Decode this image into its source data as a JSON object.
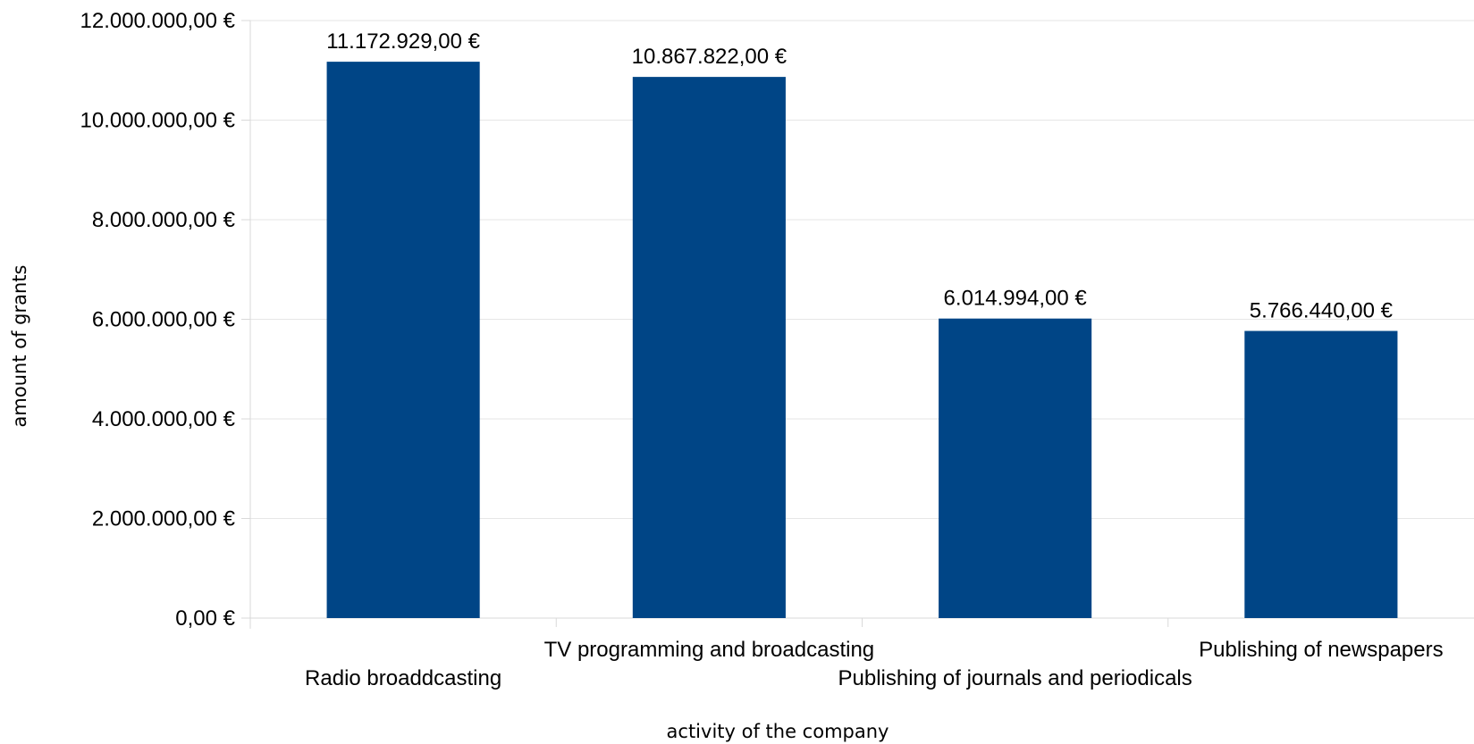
{
  "chart_data": {
    "type": "bar",
    "categories": [
      "Radio broaddcasting",
      "TV programming and broadcasting",
      "Publishing of journals and periodicals",
      "Publishing of newspapers"
    ],
    "values": [
      11172929,
      10867822,
      6014994,
      5766440
    ],
    "data_labels": [
      "11.172.929,00 €",
      "10.867.822,00 €",
      "6.014.994,00 €",
      "5.766.440,00 €"
    ],
    "y_ticks": [
      0,
      2000000,
      4000000,
      6000000,
      8000000,
      10000000,
      12000000
    ],
    "y_tick_labels": [
      "0,00 €",
      "2.000.000,00 €",
      "4.000.000,00 €",
      "6.000.000,00 €",
      "8.000.000,00 €",
      "10.000.000,00 €",
      "12.000.000,00 €"
    ],
    "xlabel": "activity of the company",
    "ylabel": "amount of grants",
    "ylim": [
      0,
      12000000
    ],
    "grid": true,
    "bar_color": "#004586"
  }
}
